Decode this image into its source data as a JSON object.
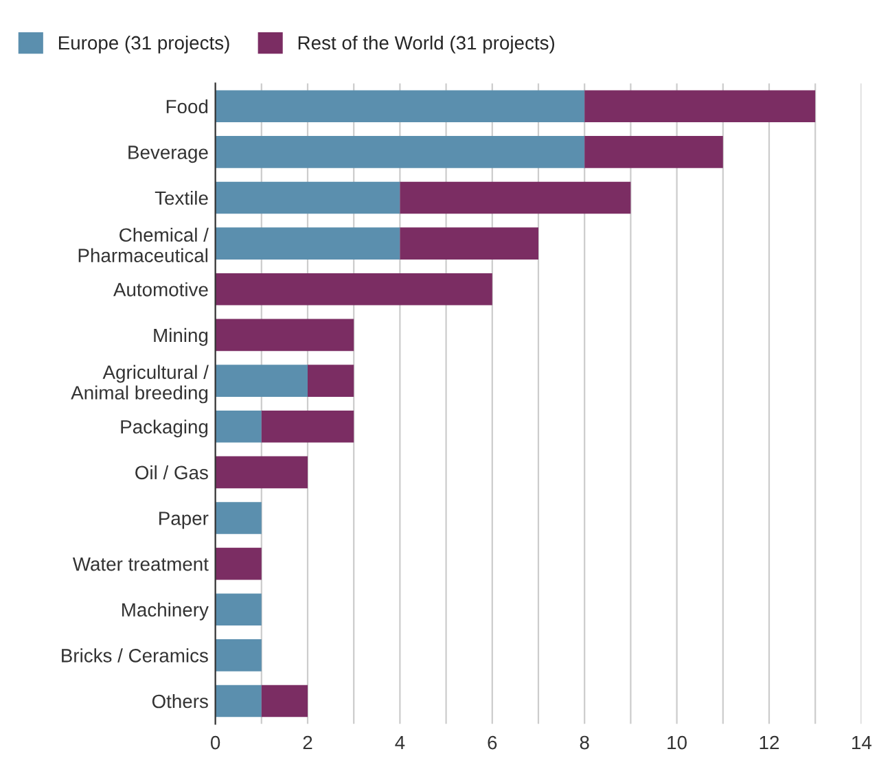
{
  "chart_data": {
    "type": "bar",
    "orientation": "horizontal",
    "stacked": true,
    "categories": [
      "Food",
      "Beverage",
      "Textile",
      "Chemical /\nPharmaceutical",
      "Automotive",
      "Mining",
      "Agricultural /\nAnimal breeding",
      "Packaging",
      "Oil / Gas",
      "Paper",
      "Water treatment",
      "Machinery",
      "Bricks / Ceramics",
      "Others"
    ],
    "series": [
      {
        "name": "Europe (31 projects)",
        "color": "#5b8fae",
        "values": [
          8,
          8,
          4,
          4,
          0,
          0,
          2,
          1,
          0,
          1,
          0,
          1,
          1,
          1
        ]
      },
      {
        "name": "Rest of the World (31 projects)",
        "color": "#7b2d63",
        "values": [
          5,
          3,
          5,
          3,
          6,
          3,
          1,
          2,
          2,
          0,
          1,
          0,
          0,
          1
        ]
      }
    ],
    "xlim": [
      0,
      14
    ],
    "xticks": [
      0,
      {
        "value": 1,
        "label": null
      },
      2,
      {
        "value": 3,
        "label": null
      },
      4,
      {
        "value": 5,
        "label": null
      },
      6,
      {
        "value": 7,
        "label": null
      },
      8,
      {
        "value": 9,
        "label": null
      },
      10,
      {
        "value": 11,
        "label": null
      },
      12,
      {
        "value": 13,
        "label": null
      },
      14
    ],
    "grid": "x",
    "legend": "top left"
  }
}
